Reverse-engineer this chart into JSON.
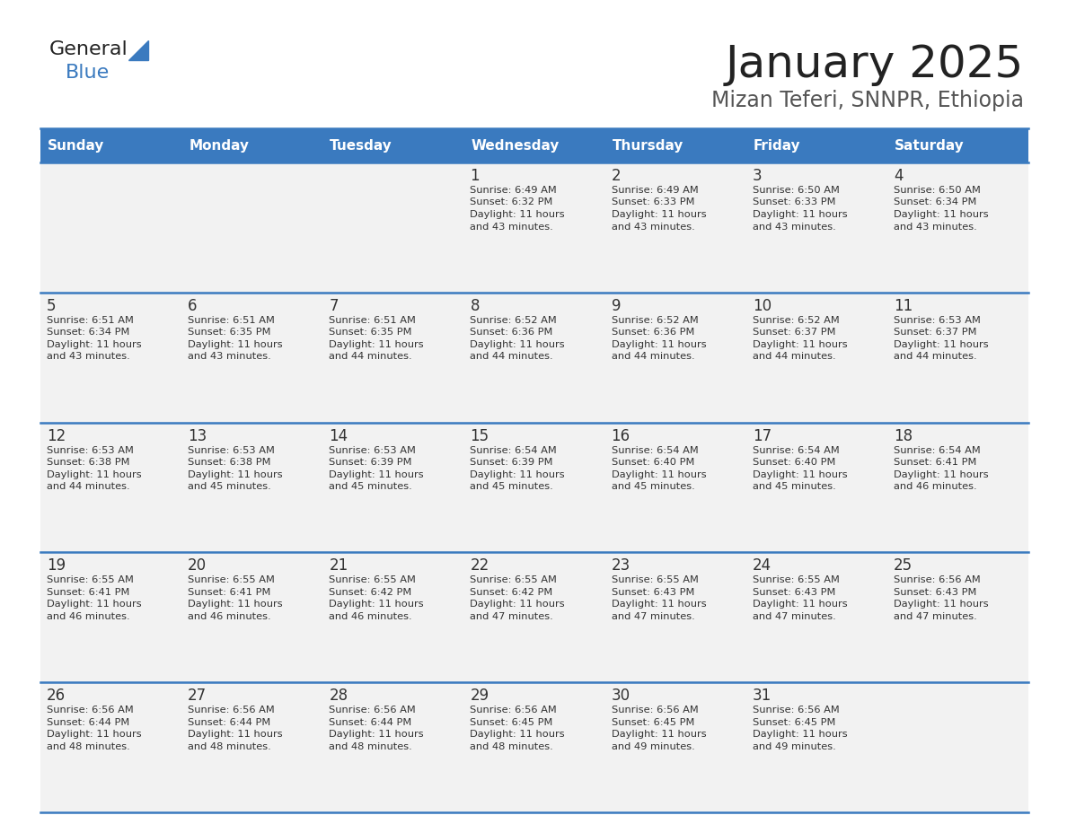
{
  "title": "January 2025",
  "subtitle": "Mizan Teferi, SNNPR, Ethiopia",
  "days_of_week": [
    "Sunday",
    "Monday",
    "Tuesday",
    "Wednesday",
    "Thursday",
    "Friday",
    "Saturday"
  ],
  "header_bg": "#3a7abf",
  "header_text": "#ffffff",
  "cell_bg": "#f2f2f2",
  "border_color": "#3a7abf",
  "text_color": "#333333",
  "day_num_color": "#333333",
  "title_color": "#222222",
  "subtitle_color": "#555555",
  "logo_general_color": "#222222",
  "logo_blue_color": "#3a7abf",
  "logo_triangle_color": "#3a7abf",
  "calendar_data": [
    [
      null,
      null,
      null,
      {
        "day": 1,
        "sunrise": "6:49 AM",
        "sunset": "6:32 PM",
        "daylight": "11 hours",
        "daylight2": "and 43 minutes."
      },
      {
        "day": 2,
        "sunrise": "6:49 AM",
        "sunset": "6:33 PM",
        "daylight": "11 hours",
        "daylight2": "and 43 minutes."
      },
      {
        "day": 3,
        "sunrise": "6:50 AM",
        "sunset": "6:33 PM",
        "daylight": "11 hours",
        "daylight2": "and 43 minutes."
      },
      {
        "day": 4,
        "sunrise": "6:50 AM",
        "sunset": "6:34 PM",
        "daylight": "11 hours",
        "daylight2": "and 43 minutes."
      }
    ],
    [
      {
        "day": 5,
        "sunrise": "6:51 AM",
        "sunset": "6:34 PM",
        "daylight": "11 hours",
        "daylight2": "and 43 minutes."
      },
      {
        "day": 6,
        "sunrise": "6:51 AM",
        "sunset": "6:35 PM",
        "daylight": "11 hours",
        "daylight2": "and 43 minutes."
      },
      {
        "day": 7,
        "sunrise": "6:51 AM",
        "sunset": "6:35 PM",
        "daylight": "11 hours",
        "daylight2": "and 44 minutes."
      },
      {
        "day": 8,
        "sunrise": "6:52 AM",
        "sunset": "6:36 PM",
        "daylight": "11 hours",
        "daylight2": "and 44 minutes."
      },
      {
        "day": 9,
        "sunrise": "6:52 AM",
        "sunset": "6:36 PM",
        "daylight": "11 hours",
        "daylight2": "and 44 minutes."
      },
      {
        "day": 10,
        "sunrise": "6:52 AM",
        "sunset": "6:37 PM",
        "daylight": "11 hours",
        "daylight2": "and 44 minutes."
      },
      {
        "day": 11,
        "sunrise": "6:53 AM",
        "sunset": "6:37 PM",
        "daylight": "11 hours",
        "daylight2": "and 44 minutes."
      }
    ],
    [
      {
        "day": 12,
        "sunrise": "6:53 AM",
        "sunset": "6:38 PM",
        "daylight": "11 hours",
        "daylight2": "and 44 minutes."
      },
      {
        "day": 13,
        "sunrise": "6:53 AM",
        "sunset": "6:38 PM",
        "daylight": "11 hours",
        "daylight2": "and 45 minutes."
      },
      {
        "day": 14,
        "sunrise": "6:53 AM",
        "sunset": "6:39 PM",
        "daylight": "11 hours",
        "daylight2": "and 45 minutes."
      },
      {
        "day": 15,
        "sunrise": "6:54 AM",
        "sunset": "6:39 PM",
        "daylight": "11 hours",
        "daylight2": "and 45 minutes."
      },
      {
        "day": 16,
        "sunrise": "6:54 AM",
        "sunset": "6:40 PM",
        "daylight": "11 hours",
        "daylight2": "and 45 minutes."
      },
      {
        "day": 17,
        "sunrise": "6:54 AM",
        "sunset": "6:40 PM",
        "daylight": "11 hours",
        "daylight2": "and 45 minutes."
      },
      {
        "day": 18,
        "sunrise": "6:54 AM",
        "sunset": "6:41 PM",
        "daylight": "11 hours",
        "daylight2": "and 46 minutes."
      }
    ],
    [
      {
        "day": 19,
        "sunrise": "6:55 AM",
        "sunset": "6:41 PM",
        "daylight": "11 hours",
        "daylight2": "and 46 minutes."
      },
      {
        "day": 20,
        "sunrise": "6:55 AM",
        "sunset": "6:41 PM",
        "daylight": "11 hours",
        "daylight2": "and 46 minutes."
      },
      {
        "day": 21,
        "sunrise": "6:55 AM",
        "sunset": "6:42 PM",
        "daylight": "11 hours",
        "daylight2": "and 46 minutes."
      },
      {
        "day": 22,
        "sunrise": "6:55 AM",
        "sunset": "6:42 PM",
        "daylight": "11 hours",
        "daylight2": "and 47 minutes."
      },
      {
        "day": 23,
        "sunrise": "6:55 AM",
        "sunset": "6:43 PM",
        "daylight": "11 hours",
        "daylight2": "and 47 minutes."
      },
      {
        "day": 24,
        "sunrise": "6:55 AM",
        "sunset": "6:43 PM",
        "daylight": "11 hours",
        "daylight2": "and 47 minutes."
      },
      {
        "day": 25,
        "sunrise": "6:56 AM",
        "sunset": "6:43 PM",
        "daylight": "11 hours",
        "daylight2": "and 47 minutes."
      }
    ],
    [
      {
        "day": 26,
        "sunrise": "6:56 AM",
        "sunset": "6:44 PM",
        "daylight": "11 hours",
        "daylight2": "and 48 minutes."
      },
      {
        "day": 27,
        "sunrise": "6:56 AM",
        "sunset": "6:44 PM",
        "daylight": "11 hours",
        "daylight2": "and 48 minutes."
      },
      {
        "day": 28,
        "sunrise": "6:56 AM",
        "sunset": "6:44 PM",
        "daylight": "11 hours",
        "daylight2": "and 48 minutes."
      },
      {
        "day": 29,
        "sunrise": "6:56 AM",
        "sunset": "6:45 PM",
        "daylight": "11 hours",
        "daylight2": "and 48 minutes."
      },
      {
        "day": 30,
        "sunrise": "6:56 AM",
        "sunset": "6:45 PM",
        "daylight": "11 hours",
        "daylight2": "and 49 minutes."
      },
      {
        "day": 31,
        "sunrise": "6:56 AM",
        "sunset": "6:45 PM",
        "daylight": "11 hours",
        "daylight2": "and 49 minutes."
      },
      null
    ]
  ]
}
